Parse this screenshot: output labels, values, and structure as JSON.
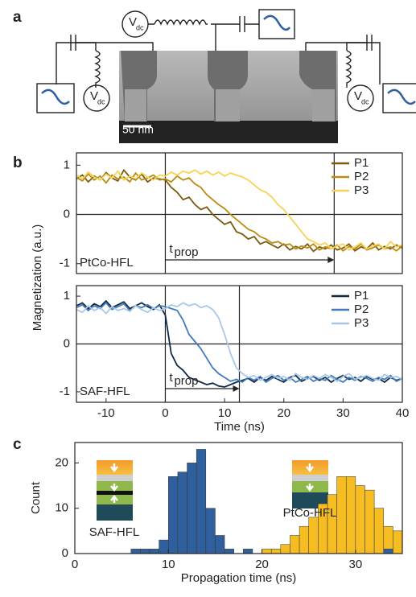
{
  "panel_labels": [
    "a",
    "b",
    "c"
  ],
  "schematic": {
    "sources": [
      {
        "symbol": "V",
        "subscript": "dc"
      },
      {
        "symbol": "V",
        "subscript": "dc"
      },
      {
        "symbol": "V",
        "subscript": "dc"
      }
    ],
    "scale_bar": "50 nm"
  },
  "chart_data": [
    {
      "type": "line",
      "ylabel": "Magnetization (a.u.)",
      "label": "PtCo-HFL",
      "annotation": {
        "text": "t",
        "subscript": "prop"
      },
      "xlim": [
        -15,
        40
      ],
      "ylim": [
        -1.2,
        1.25
      ],
      "yticks": [
        -1,
        0,
        1
      ],
      "hlines": [
        0
      ],
      "vlines": [
        0,
        28.5
      ],
      "x": [
        -15,
        -14,
        -13,
        -12,
        -11,
        -10,
        -9,
        -8,
        -7,
        -6,
        -5,
        -4,
        -3,
        -2,
        -1,
        0,
        1,
        2,
        3,
        4,
        5,
        6,
        7,
        8,
        9,
        10,
        11,
        12,
        13,
        14,
        15,
        16,
        17,
        18,
        19,
        20,
        21,
        22,
        23,
        24,
        25,
        26,
        27,
        28,
        29,
        30,
        31,
        32,
        33,
        34,
        35,
        36,
        37,
        38,
        39,
        40
      ],
      "series": [
        {
          "name": "P1",
          "color": "#7a5a0c",
          "values": [
            0.72,
            0.8,
            0.66,
            0.78,
            0.7,
            0.85,
            0.74,
            0.68,
            0.9,
            0.76,
            0.7,
            0.82,
            0.66,
            0.74,
            0.72,
            0.7,
            0.55,
            0.45,
            0.3,
            0.35,
            0.2,
            0.1,
            0.15,
            0.0,
            -0.1,
            -0.2,
            -0.15,
            -0.35,
            -0.4,
            -0.5,
            -0.45,
            -0.6,
            -0.55,
            -0.62,
            -0.68,
            -0.6,
            -0.72,
            -0.65,
            -0.7,
            -0.6,
            -0.75,
            -0.66,
            -0.7,
            -0.62,
            -0.72,
            -0.68,
            -0.6,
            -0.74,
            -0.66,
            -0.7,
            -0.58,
            -0.72,
            -0.65,
            -0.7,
            -0.62,
            -0.68
          ]
        },
        {
          "name": "P2",
          "color": "#bb8c14",
          "values": [
            0.75,
            0.68,
            0.82,
            0.7,
            0.78,
            0.64,
            0.8,
            0.72,
            0.76,
            0.66,
            0.84,
            0.7,
            0.74,
            0.8,
            0.7,
            0.72,
            0.66,
            0.78,
            0.7,
            0.74,
            0.62,
            0.55,
            0.4,
            0.3,
            0.2,
            0.12,
            0.0,
            -0.1,
            -0.2,
            -0.3,
            -0.35,
            -0.45,
            -0.5,
            -0.58,
            -0.55,
            -0.62,
            -0.6,
            -0.7,
            -0.64,
            -0.68,
            -0.6,
            -0.72,
            -0.66,
            -0.7,
            -0.62,
            -0.74,
            -0.65,
            -0.7,
            -0.6,
            -0.72,
            -0.68,
            -0.62,
            -0.7,
            -0.66,
            -0.74,
            -0.64
          ]
        },
        {
          "name": "P3",
          "color": "#f7d255",
          "values": [
            0.8,
            0.72,
            0.86,
            0.76,
            0.7,
            0.82,
            0.74,
            0.88,
            0.7,
            0.78,
            0.72,
            0.84,
            0.76,
            0.7,
            0.8,
            0.78,
            0.86,
            0.8,
            0.88,
            0.84,
            0.9,
            0.82,
            0.88,
            0.8,
            0.86,
            0.78,
            0.84,
            0.8,
            0.76,
            0.7,
            0.6,
            0.5,
            0.45,
            0.35,
            0.2,
            0.1,
            -0.05,
            -0.2,
            -0.35,
            -0.5,
            -0.55,
            -0.62,
            -0.58,
            -0.7,
            -0.64,
            -0.6,
            -0.72,
            -0.66,
            -0.58,
            -0.7,
            -0.64,
            -0.6,
            -0.7,
            -0.55,
            -0.66,
            -0.62
          ]
        }
      ]
    },
    {
      "type": "line",
      "xlabel": "Time (ns)",
      "label": "SAF-HFL",
      "annotation": {
        "text": "t",
        "subscript": "prop"
      },
      "xlim": [
        -15,
        40
      ],
      "xticks": [
        -10,
        0,
        10,
        20,
        30,
        40
      ],
      "ylim": [
        -1.22,
        1.22
      ],
      "yticks": [
        -1,
        0,
        1
      ],
      "hlines": [
        0
      ],
      "vlines": [
        0,
        12.5
      ],
      "x": [
        -15,
        -14,
        -13,
        -12,
        -11,
        -10,
        -9,
        -8,
        -7,
        -6,
        -5,
        -4,
        -3,
        -2,
        -1,
        0,
        1,
        2,
        3,
        4,
        5,
        6,
        7,
        8,
        9,
        10,
        11,
        12,
        13,
        14,
        15,
        16,
        17,
        18,
        19,
        20,
        21,
        22,
        23,
        24,
        25,
        26,
        27,
        28,
        29,
        30,
        31,
        32,
        33,
        34,
        35,
        36,
        37,
        38,
        39,
        40
      ],
      "series": [
        {
          "name": "P1",
          "color": "#0e2a48",
          "values": [
            0.8,
            0.86,
            0.74,
            0.84,
            0.78,
            0.9,
            0.76,
            0.82,
            0.88,
            0.74,
            0.8,
            0.86,
            0.78,
            0.72,
            0.82,
            0.6,
            -0.2,
            -0.45,
            -0.55,
            -0.7,
            -0.75,
            -0.8,
            -0.85,
            -0.82,
            -0.88,
            -0.9,
            -0.85,
            -0.8,
            -0.76,
            -0.72,
            -0.8,
            -0.7,
            -0.76,
            -0.68,
            -0.74,
            -0.8,
            -0.7,
            -0.66,
            -0.78,
            -0.72,
            -0.68,
            -0.76,
            -0.7,
            -0.8,
            -0.72,
            -0.66,
            -0.74,
            -0.7,
            -0.78,
            -0.68,
            -0.74,
            -0.72,
            -0.8,
            -0.7,
            -0.76,
            -0.72
          ]
        },
        {
          "name": "P2",
          "color": "#3f7bbb",
          "values": [
            0.76,
            0.82,
            0.7,
            0.8,
            0.74,
            0.86,
            0.72,
            0.78,
            0.84,
            0.7,
            0.8,
            0.76,
            0.82,
            0.74,
            0.8,
            0.78,
            0.74,
            0.7,
            0.5,
            0.2,
            0.05,
            -0.1,
            -0.3,
            -0.5,
            -0.62,
            -0.7,
            -0.78,
            -0.74,
            -0.8,
            -0.7,
            -0.76,
            -0.68,
            -0.8,
            -0.72,
            -0.66,
            -0.76,
            -0.7,
            -0.8,
            -0.74,
            -0.68,
            -0.78,
            -0.72,
            -0.76,
            -0.66,
            -0.74,
            -0.8,
            -0.7,
            -0.76,
            -0.68,
            -0.72,
            -0.78,
            -0.7,
            -0.74,
            -0.66,
            -0.78,
            -0.72
          ]
        },
        {
          "name": "P3",
          "color": "#aac8e6",
          "values": [
            0.72,
            0.66,
            0.8,
            0.7,
            0.76,
            0.64,
            0.78,
            0.7,
            0.74,
            0.68,
            0.8,
            0.72,
            0.66,
            0.76,
            0.7,
            0.74,
            0.82,
            0.78,
            0.86,
            0.8,
            0.84,
            0.76,
            0.8,
            0.72,
            0.55,
            0.2,
            -0.2,
            -0.5,
            -0.62,
            -0.7,
            -0.66,
            -0.76,
            -0.7,
            -0.64,
            -0.72,
            -0.68,
            -0.76,
            -0.62,
            -0.7,
            -0.74,
            -0.66,
            -0.72,
            -0.64,
            -0.7,
            -0.78,
            -0.68,
            -0.62,
            -0.74,
            -0.7,
            -0.66,
            -0.72,
            -0.76,
            -0.64,
            -0.7,
            -0.68,
            -0.74
          ]
        }
      ]
    },
    {
      "type": "histogram",
      "xlabel": "Propagation time (ns)",
      "ylabel": "Count",
      "xlim": [
        0,
        35
      ],
      "xticks": [
        0,
        10,
        20,
        30
      ],
      "ylim": [
        0,
        24.5
      ],
      "yticks": [
        0,
        10,
        20
      ],
      "bins": [
        0,
        1,
        2,
        3,
        4,
        5,
        6,
        7,
        8,
        9,
        10,
        11,
        12,
        13,
        14,
        15,
        16,
        17,
        18,
        19,
        20,
        21,
        22,
        23,
        24,
        25,
        26,
        27,
        28,
        29,
        30,
        31,
        32,
        33,
        34,
        35
      ],
      "series": [
        {
          "name": "SAF-HFL",
          "color": "#2f5f9c",
          "values": [
            0,
            0,
            0,
            0,
            0,
            0,
            1,
            1,
            1,
            3,
            17,
            18,
            20,
            23,
            10,
            4,
            1,
            0,
            1,
            0,
            0,
            0,
            0,
            0,
            0,
            0,
            0,
            0,
            0,
            0,
            0,
            0,
            0,
            1,
            0
          ]
        },
        {
          "name": "PtCo-HFL",
          "color": "#f6bd22",
          "values": [
            0,
            0,
            0,
            0,
            0,
            0,
            0,
            0,
            0,
            0,
            0,
            0,
            0,
            0,
            0,
            0,
            0,
            0,
            0,
            0,
            1,
            1,
            2,
            4,
            6,
            8,
            11,
            13,
            17,
            17,
            15,
            14,
            10,
            6,
            5
          ]
        }
      ]
    }
  ]
}
